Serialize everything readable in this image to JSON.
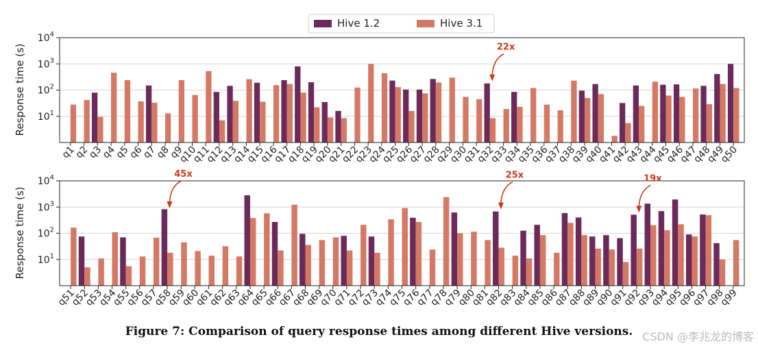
{
  "chart_data": {
    "type": "bar",
    "scale": "log",
    "ylabel": "Response time (s)",
    "ylim": [
      1,
      10000
    ],
    "yticks": [
      {
        "base": "10",
        "exp": "1"
      },
      {
        "base": "10",
        "exp": "2"
      },
      {
        "base": "10",
        "exp": "3"
      },
      {
        "base": "10",
        "exp": "4"
      }
    ],
    "colors": {
      "Hive 1.2": "#6b2a5a",
      "Hive 3.1": "#d47a64",
      "annotation": "#cc3a1a"
    },
    "legend": {
      "position": "top-center",
      "entries": [
        "Hive 1.2",
        "Hive 3.1"
      ]
    },
    "panels": [
      {
        "categories": [
          "q1",
          "q2",
          "q3",
          "q4",
          "q5",
          "q6",
          "q7",
          "q8",
          "q9",
          "q10",
          "q11",
          "q12",
          "q13",
          "q14",
          "q15",
          "q16",
          "q17",
          "q18",
          "q19",
          "q20",
          "q21",
          "q22",
          "q23",
          "q24",
          "q25",
          "q26",
          "q27",
          "q28",
          "q29",
          "q30",
          "q31",
          "q32",
          "q33",
          "q34",
          "q35",
          "q36",
          "q37",
          "q38",
          "q39",
          "q40",
          "q41",
          "q42",
          "q43",
          "q44",
          "q45",
          "q46",
          "q47",
          "q48",
          "q49",
          "q50"
        ],
        "series": [
          {
            "name": "Hive 1.2",
            "values": [
              null,
              null,
              80,
              null,
              null,
              null,
              150,
              null,
              null,
              null,
              null,
              85,
              145,
              null,
              190,
              null,
              240,
              800,
              200,
              35,
              16,
              null,
              null,
              null,
              230,
              105,
              105,
              265,
              null,
              null,
              null,
              180,
              null,
              85,
              null,
              null,
              null,
              null,
              95,
              170,
              null,
              32,
              150,
              null,
              160,
              165,
              null,
              145,
              410,
              1000
            ]
          },
          {
            "name": "Hive 3.1",
            "values": [
              28,
              42,
              9.5,
              460,
              240,
              37,
              33,
              13,
              240,
              65,
              530,
              7,
              39,
              260,
              36,
              155,
              170,
              80,
              22,
              9,
              8.5,
              125,
              1000,
              440,
              130,
              16,
              75,
              195,
              300,
              55,
              45,
              8.5,
              19,
              23,
              120,
              28,
              17,
              230,
              50,
              70,
              1.8,
              5.5,
              25,
              210,
              62,
              55,
              115,
              29,
              170,
              120
            ]
          }
        ],
        "annotations": [
          {
            "label": "22x",
            "category": "q32"
          }
        ]
      },
      {
        "categories": [
          "q51",
          "q52",
          "q53",
          "q54",
          "q55",
          "q56",
          "q57",
          "q58",
          "q59",
          "q60",
          "q61",
          "q62",
          "q63",
          "q64",
          "q65",
          "q66",
          "q67",
          "q68",
          "q69",
          "q70",
          "q71",
          "q72",
          "q73",
          "q74",
          "q75",
          "q76",
          "q77",
          "q78",
          "q79",
          "q80",
          "q81",
          "q82",
          "q83",
          "q84",
          "q85",
          "q86",
          "q87",
          "q88",
          "q89",
          "q90",
          "q91",
          "q92",
          "q93",
          "q94",
          "q95",
          "q96",
          "q97",
          "q98",
          "q99"
        ],
        "series": [
          {
            "name": "Hive 1.2",
            "values": [
              null,
              75,
              null,
              null,
              70,
              null,
              null,
              830,
              null,
              null,
              null,
              null,
              null,
              2800,
              null,
              270,
              null,
              95,
              null,
              null,
              80,
              null,
              75,
              null,
              null,
              390,
              null,
              null,
              620,
              null,
              null,
              680,
              null,
              125,
              210,
              null,
              590,
              400,
              75,
              85,
              65,
              510,
              1350,
              700,
              1950,
              90,
              520,
              42,
              null
            ]
          },
          {
            "name": "Hive 3.1",
            "values": [
              165,
              5,
              11,
              110,
              5.5,
              13,
              68,
              18,
              45,
              21,
              14,
              32,
              13,
              380,
              580,
              22,
              1230,
              36,
              55,
              70,
              22,
              210,
              18,
              340,
              920,
              270,
              24,
              2400,
              100,
              115,
              55,
              28,
              14,
              11,
              85,
              18,
              250,
              85,
              26,
              24,
              8,
              26,
              205,
              130,
              220,
              75,
              490,
              10,
              55
            ]
          }
        ],
        "annotations": [
          {
            "label": "45x",
            "category": "q58"
          },
          {
            "label": "25x",
            "category": "q82"
          },
          {
            "label": "19x",
            "category": "q92"
          }
        ]
      }
    ]
  },
  "caption": "Figure 7: Comparison of query response times among different Hive versions.",
  "watermark": "CSDN @李兆龙的博客"
}
